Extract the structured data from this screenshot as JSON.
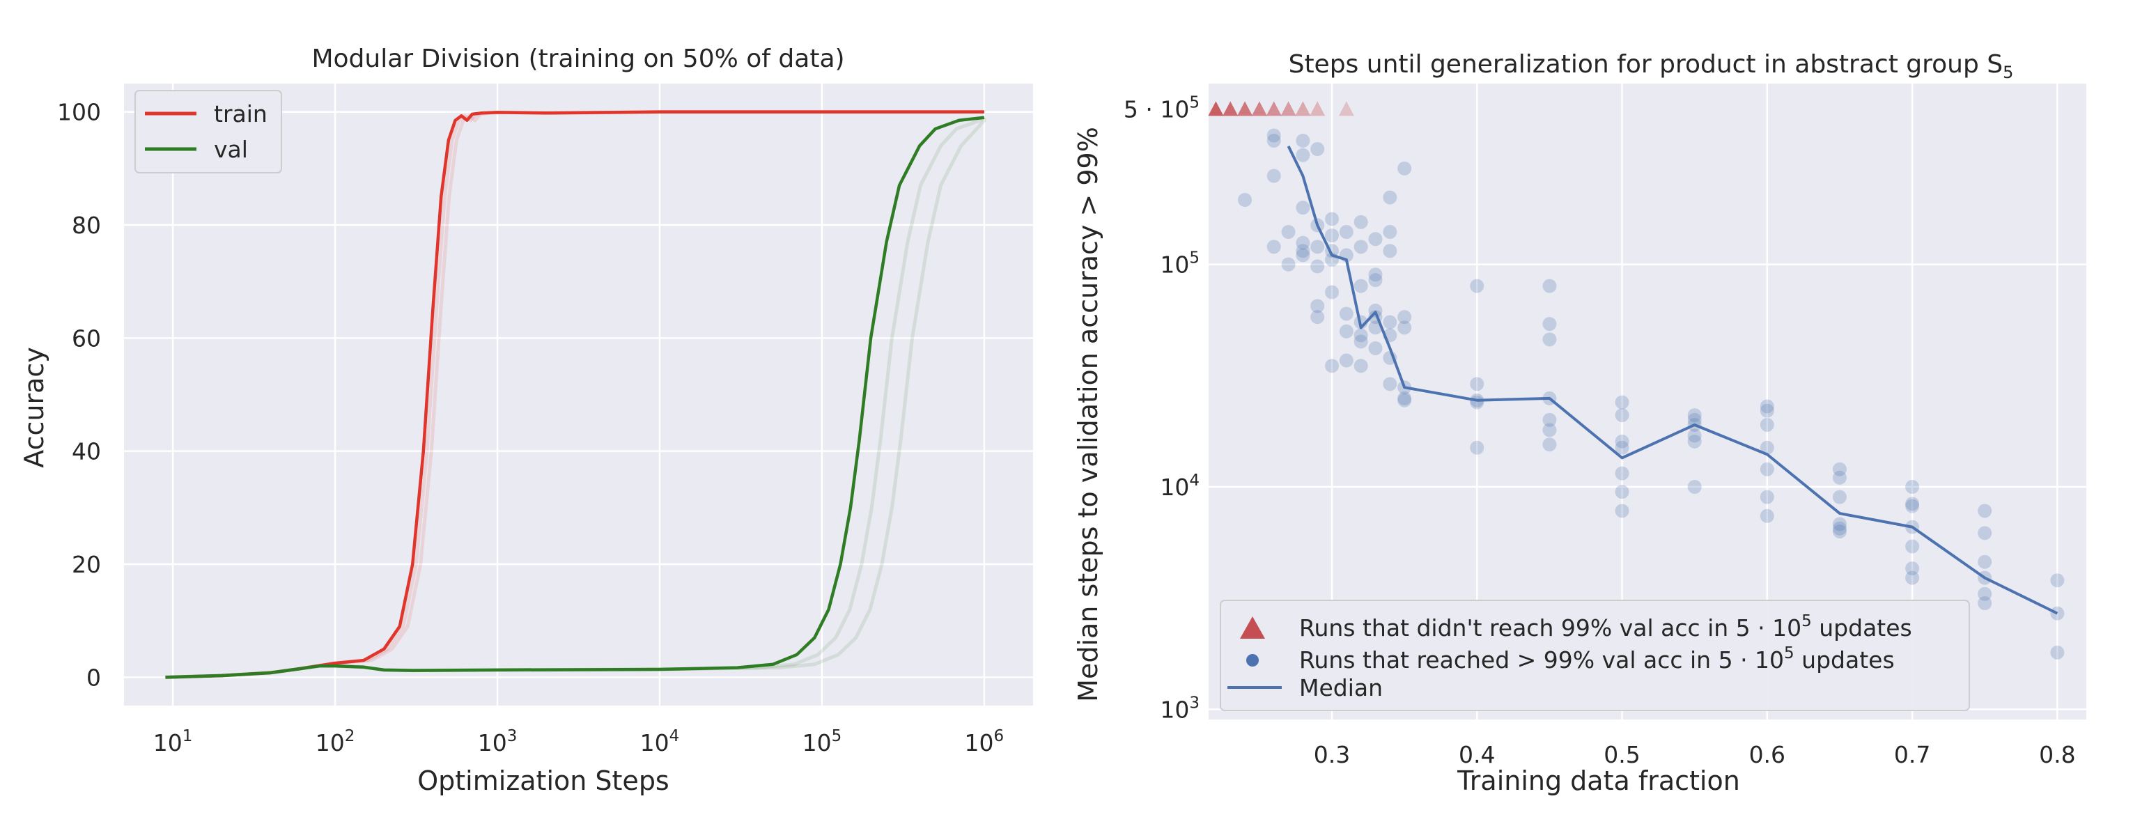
{
  "chart_data": [
    {
      "type": "line",
      "title": "Modular Division (training on 50% of data)",
      "xlabel": "Optimization Steps",
      "ylabel": "Accuracy",
      "xscale": "log",
      "xlim": [
        5,
        2000000
      ],
      "ylim": [
        -5,
        105
      ],
      "xtick_labels": [
        {
          "base": "10",
          "exp": "1"
        },
        {
          "base": "10",
          "exp": "2"
        },
        {
          "base": "10",
          "exp": "3"
        },
        {
          "base": "10",
          "exp": "4"
        },
        {
          "base": "10",
          "exp": "5"
        },
        {
          "base": "10",
          "exp": "6"
        }
      ],
      "ytick_labels": [
        "0",
        "20",
        "40",
        "60",
        "80",
        "100"
      ],
      "grid": true,
      "legend_position": "upper-left",
      "series": [
        {
          "name": "train",
          "color": "#e0352b",
          "x": [
            9,
            20,
            40,
            60,
            100,
            150,
            200,
            250,
            300,
            350,
            400,
            450,
            500,
            550,
            600,
            650,
            700,
            800,
            1000,
            2000,
            5000,
            10000,
            100000,
            1000000
          ],
          "y": [
            0,
            0.3,
            0.8,
            1.5,
            2.5,
            3,
            5,
            9,
            20,
            40,
            65,
            85,
            95,
            98.5,
            99.3,
            98.5,
            99.6,
            99.8,
            99.9,
            99.8,
            99.9,
            100,
            100,
            100
          ]
        },
        {
          "name": "val",
          "color": "#2e7d24",
          "x": [
            9,
            20,
            40,
            60,
            80,
            100,
            150,
            200,
            300,
            1000,
            10000,
            30000,
            50000,
            70000,
            90000,
            110000,
            130000,
            150000,
            170000,
            200000,
            250000,
            300000,
            400000,
            500000,
            700000,
            1000000
          ],
          "y": [
            0,
            0.3,
            0.8,
            1.5,
            2,
            2,
            1.8,
            1.3,
            1.2,
            1.3,
            1.4,
            1.7,
            2.3,
            4,
            7,
            12,
            20,
            30,
            42,
            60,
            77,
            87,
            94,
            97,
            98.5,
            99
          ]
        }
      ]
    },
    {
      "type": "scatter",
      "title": "Steps until generalization for product in abstract group S",
      "title_subscript_symbol": "S",
      "title_subscript": "5",
      "xlabel": "Training data fraction",
      "ylabel": "Median steps to validation accuracy > 99%",
      "yscale": "log",
      "xlim": [
        0.215,
        0.82
      ],
      "ylim": [
        900,
        650000
      ],
      "xtick_labels": [
        "0.3",
        "0.4",
        "0.5",
        "0.6",
        "0.7",
        "0.8"
      ],
      "ytick_labels": [
        {
          "prefix": "5 · ",
          "base": "10",
          "exp": "5"
        },
        {
          "prefix": "",
          "base": "10",
          "exp": "5"
        },
        {
          "prefix": "",
          "base": "10",
          "exp": "4"
        },
        {
          "prefix": "",
          "base": "10",
          "exp": "3"
        }
      ],
      "grid": true,
      "legend_position": "lower-left",
      "legend": [
        {
          "marker": "triangle",
          "color": "#c44e52",
          "label": "Runs that didn't reach 99% val acc in 5 · 10",
          "exp": "5",
          "suffix": " updates"
        },
        {
          "marker": "circle",
          "color": "#4c72b0",
          "label": "Runs that reached > 99% val acc in 5 · 10",
          "exp": "5",
          "suffix": " updates"
        },
        {
          "marker": "line",
          "color": "#4c72b0",
          "label": "Median"
        }
      ],
      "not_reached": {
        "x": [
          0.22,
          0.23,
          0.24,
          0.25,
          0.26,
          0.27,
          0.28,
          0.29,
          0.31
        ],
        "y": 500000,
        "color": "#c44e52"
      },
      "runs": {
        "color": "#4c72b0",
        "points": [
          [
            0.24,
            195000
          ],
          [
            0.26,
            380000
          ],
          [
            0.26,
            360000
          ],
          [
            0.26,
            250000
          ],
          [
            0.26,
            120000
          ],
          [
            0.27,
            140000
          ],
          [
            0.27,
            100000
          ],
          [
            0.28,
            360000
          ],
          [
            0.28,
            310000
          ],
          [
            0.28,
            180000
          ],
          [
            0.28,
            110000
          ],
          [
            0.28,
            115000
          ],
          [
            0.28,
            125000
          ],
          [
            0.29,
            330000
          ],
          [
            0.29,
            150000
          ],
          [
            0.29,
            120000
          ],
          [
            0.29,
            98000
          ],
          [
            0.29,
            65000
          ],
          [
            0.29,
            58000
          ],
          [
            0.3,
            160000
          ],
          [
            0.3,
            135000
          ],
          [
            0.3,
            115000
          ],
          [
            0.3,
            105000
          ],
          [
            0.3,
            75000
          ],
          [
            0.3,
            35000
          ],
          [
            0.31,
            140000
          ],
          [
            0.31,
            110000
          ],
          [
            0.31,
            60000
          ],
          [
            0.31,
            50000
          ],
          [
            0.31,
            37000
          ],
          [
            0.32,
            155000
          ],
          [
            0.32,
            120000
          ],
          [
            0.32,
            80000
          ],
          [
            0.32,
            55000
          ],
          [
            0.32,
            48000
          ],
          [
            0.32,
            45000
          ],
          [
            0.32,
            35000
          ],
          [
            0.33,
            130000
          ],
          [
            0.33,
            90000
          ],
          [
            0.33,
            85000
          ],
          [
            0.33,
            62000
          ],
          [
            0.33,
            58000
          ],
          [
            0.33,
            52000
          ],
          [
            0.33,
            42000
          ],
          [
            0.34,
            200000
          ],
          [
            0.34,
            140000
          ],
          [
            0.34,
            115000
          ],
          [
            0.34,
            55000
          ],
          [
            0.34,
            48000
          ],
          [
            0.34,
            38000
          ],
          [
            0.34,
            29000
          ],
          [
            0.35,
            270000
          ],
          [
            0.35,
            58000
          ],
          [
            0.35,
            52000
          ],
          [
            0.35,
            28000
          ],
          [
            0.35,
            25000
          ],
          [
            0.35,
            24500
          ],
          [
            0.4,
            80000
          ],
          [
            0.4,
            29000
          ],
          [
            0.4,
            24500
          ],
          [
            0.4,
            24000
          ],
          [
            0.4,
            15000
          ],
          [
            0.45,
            80000
          ],
          [
            0.45,
            54000
          ],
          [
            0.45,
            46000
          ],
          [
            0.45,
            25000
          ],
          [
            0.45,
            20000
          ],
          [
            0.45,
            18000
          ],
          [
            0.45,
            15500
          ],
          [
            0.5,
            24000
          ],
          [
            0.5,
            21000
          ],
          [
            0.5,
            16000
          ],
          [
            0.5,
            15000
          ],
          [
            0.5,
            11500
          ],
          [
            0.5,
            9500
          ],
          [
            0.5,
            7800
          ],
          [
            0.55,
            21000
          ],
          [
            0.55,
            20000
          ],
          [
            0.55,
            19000
          ],
          [
            0.55,
            17000
          ],
          [
            0.55,
            16000
          ],
          [
            0.55,
            10000
          ],
          [
            0.6,
            23000
          ],
          [
            0.6,
            22000
          ],
          [
            0.6,
            19000
          ],
          [
            0.6,
            15000
          ],
          [
            0.6,
            12000
          ],
          [
            0.6,
            9000
          ],
          [
            0.6,
            7400
          ],
          [
            0.65,
            12000
          ],
          [
            0.65,
            11000
          ],
          [
            0.65,
            9000
          ],
          [
            0.65,
            6800
          ],
          [
            0.65,
            6500
          ],
          [
            0.65,
            6300
          ],
          [
            0.7,
            10000
          ],
          [
            0.7,
            8400
          ],
          [
            0.7,
            8200
          ],
          [
            0.7,
            6600
          ],
          [
            0.7,
            5400
          ],
          [
            0.7,
            4300
          ],
          [
            0.7,
            3900
          ],
          [
            0.75,
            7800
          ],
          [
            0.75,
            6200
          ],
          [
            0.75,
            4600
          ],
          [
            0.75,
            3900
          ],
          [
            0.75,
            3300
          ],
          [
            0.75,
            3000
          ],
          [
            0.8,
            3800
          ],
          [
            0.8,
            2700
          ],
          [
            0.8,
            1800
          ]
        ]
      },
      "median": {
        "color": "#4c72b0",
        "x": [
          0.27,
          0.28,
          0.29,
          0.3,
          0.31,
          0.32,
          0.33,
          0.34,
          0.35,
          0.4,
          0.45,
          0.5,
          0.55,
          0.6,
          0.65,
          0.7,
          0.75,
          0.8
        ],
        "y": [
          340000,
          250000,
          150000,
          110000,
          105000,
          52000,
          61000,
          42000,
          28000,
          24500,
          25000,
          13500,
          19000,
          14000,
          7600,
          6600,
          3900,
          2700
        ]
      }
    }
  ]
}
